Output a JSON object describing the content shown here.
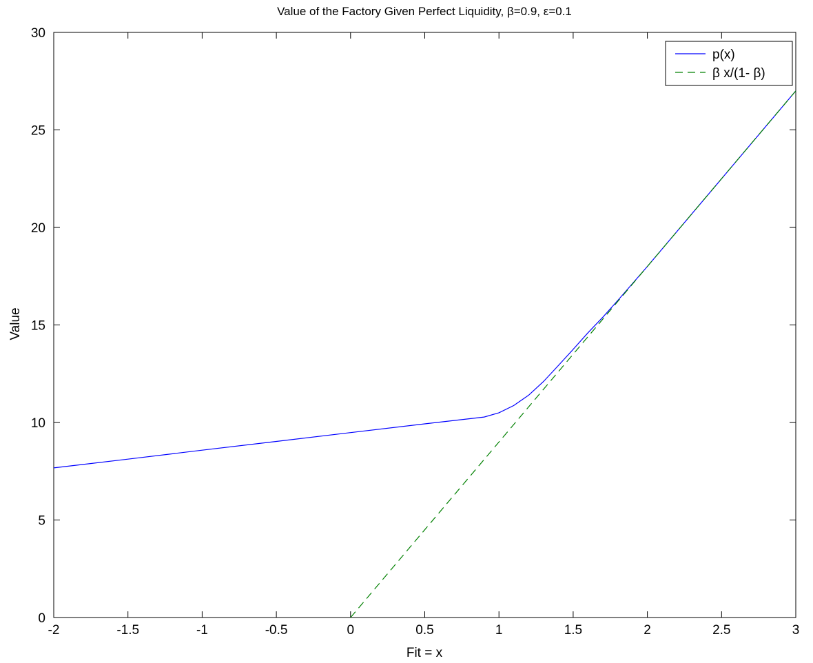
{
  "chart_data": {
    "type": "line",
    "title": "Value of the Factory Given Perfect Liquidity,    β=0.9,  ε=0.1",
    "xlabel": "Fit = x",
    "ylabel": "Value",
    "xlim": [
      -2,
      3
    ],
    "ylim": [
      0,
      30
    ],
    "xticks": [
      -2,
      -1.5,
      -1,
      -0.5,
      0,
      0.5,
      1,
      1.5,
      2,
      2.5,
      3
    ],
    "yticks": [
      0,
      5,
      10,
      15,
      20,
      25,
      30
    ],
    "xtick_labels": [
      "-2",
      "-1.5",
      "-1",
      "-0.5",
      "0",
      "0.5",
      "1",
      "1.5",
      "2",
      "2.5",
      "3"
    ],
    "ytick_labels": [
      "0",
      "5",
      "10",
      "15",
      "20",
      "25",
      "30"
    ],
    "grid": false,
    "legend_position": "top-right",
    "series": [
      {
        "name": "p(x)",
        "color": "#0000ff",
        "style": "solid",
        "x": [
          -2,
          -1.5,
          -1,
          -0.5,
          0,
          0.5,
          0.9,
          1.0,
          1.1,
          1.2,
          1.3,
          1.4,
          1.5,
          1.6,
          1.7,
          1.8,
          2.0,
          2.5,
          3.0
        ],
        "y": [
          7.67,
          8.12,
          8.58,
          9.03,
          9.48,
          9.93,
          10.28,
          10.5,
          10.87,
          11.4,
          12.1,
          12.92,
          13.75,
          14.6,
          15.4,
          16.25,
          18.0,
          22.5,
          27.0
        ]
      },
      {
        "name": "β x/(1- β)",
        "color": "#008000",
        "style": "dashed",
        "x": [
          0,
          3
        ],
        "y": [
          0,
          27
        ]
      }
    ]
  }
}
